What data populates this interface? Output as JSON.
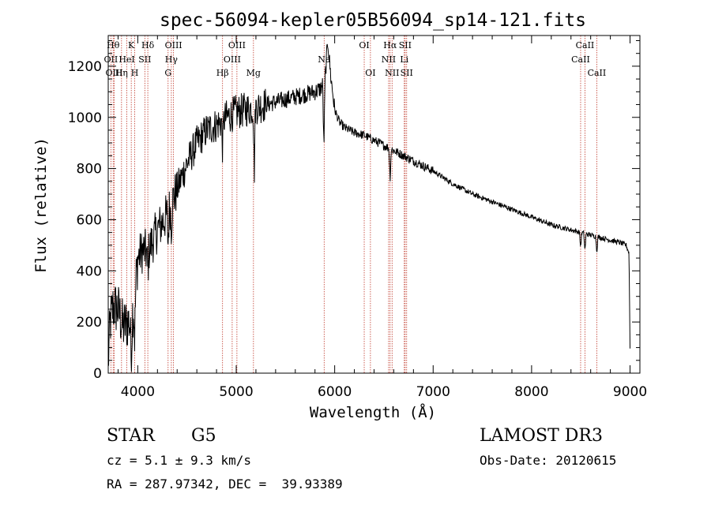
{
  "chart_data": {
    "type": "line",
    "title": "spec-56094-kepler05B56094_sp14-121.fits",
    "xlabel": "Wavelength (Å)",
    "ylabel": "Flux (relative)",
    "xlim": [
      3700,
      9100
    ],
    "ylim": [
      0,
      1320
    ],
    "xticks": [
      4000,
      5000,
      6000,
      7000,
      8000,
      9000
    ],
    "xtick_labels": [
      "4000",
      "5000",
      "6000",
      "7000",
      "8000",
      "9000"
    ],
    "yticks": [
      0,
      200,
      400,
      600,
      800,
      1000,
      1200
    ],
    "ytick_labels": [
      "0",
      "200",
      "400",
      "600",
      "800",
      "1000",
      "1200"
    ],
    "grid": false,
    "series": [
      {
        "name": "flux",
        "color": "#000000",
        "anchors_x": [
          3700,
          3720,
          3750,
          3800,
          3850,
          3900,
          3935,
          3970,
          4000,
          4050,
          4100,
          4200,
          4300,
          4400,
          4500,
          4600,
          4700,
          4800,
          4900,
          5000,
          5100,
          5200,
          5300,
          5400,
          5500,
          5600,
          5700,
          5800,
          5850,
          5900,
          5930,
          5960,
          6000,
          6050,
          6100,
          6200,
          6300,
          6400,
          6500,
          6600,
          6700,
          6800,
          7000,
          7200,
          7400,
          7600,
          7800,
          8000,
          8200,
          8400,
          8500,
          8600,
          8700,
          8800,
          8900,
          8960,
          8990,
          9000
        ],
        "anchors_y": [
          40,
          200,
          260,
          250,
          180,
          200,
          200,
          300,
          450,
          480,
          470,
          560,
          620,
          720,
          820,
          900,
          950,
          970,
          1000,
          1020,
          1030,
          1040,
          1050,
          1060,
          1070,
          1080,
          1090,
          1100,
          1110,
          1140,
          1300,
          1160,
          1030,
          980,
          960,
          940,
          930,
          910,
          890,
          870,
          850,
          830,
          790,
          740,
          700,
          670,
          640,
          610,
          580,
          560,
          550,
          540,
          530,
          520,
          510,
          500,
          470,
          100
        ]
      }
    ],
    "absorption_dips": [
      {
        "x": 3934,
        "depth": 160
      },
      {
        "x": 3969,
        "depth": 160
      },
      {
        "x": 4102,
        "depth": 80
      },
      {
        "x": 4308,
        "depth": 120
      },
      {
        "x": 4341,
        "depth": 90
      },
      {
        "x": 4861,
        "depth": 110
      },
      {
        "x": 5183,
        "depth": 260
      },
      {
        "x": 5890,
        "depth": 260
      },
      {
        "x": 6563,
        "depth": 120
      },
      {
        "x": 8498,
        "depth": 60
      },
      {
        "x": 8542,
        "depth": 70
      },
      {
        "x": 8662,
        "depth": 60
      }
    ],
    "line_markers": [
      {
        "x": 3750,
        "label": "Hθ",
        "row": 0
      },
      {
        "x": 3727,
        "label": "OII",
        "row": 1
      },
      {
        "x": 3760,
        "label": "OIII",
        "row": 2
      },
      {
        "x": 3835,
        "label": "Hη",
        "row": 2
      },
      {
        "x": 3889,
        "label": "HeI",
        "row": 1
      },
      {
        "x": 3934,
        "label": "K",
        "row": 0
      },
      {
        "x": 3969,
        "label": "H",
        "row": 2
      },
      {
        "x": 4072,
        "label": "SII",
        "row": 1
      },
      {
        "x": 4102,
        "label": "Hδ",
        "row": 0
      },
      {
        "x": 4308,
        "label": "G",
        "row": 2
      },
      {
        "x": 4341,
        "label": "Hγ",
        "row": 1
      },
      {
        "x": 4363,
        "label": "OIII",
        "row": 0
      },
      {
        "x": 4861,
        "label": "Hβ",
        "row": 2
      },
      {
        "x": 4959,
        "label": "OIII",
        "row": 1
      },
      {
        "x": 5007,
        "label": "OIII",
        "row": 0
      },
      {
        "x": 5175,
        "label": "Mg",
        "row": 2
      },
      {
        "x": 5893,
        "label": "Na",
        "row": 1
      },
      {
        "x": 6300,
        "label": "OI",
        "row": 0
      },
      {
        "x": 6363,
        "label": "OI",
        "row": 2
      },
      {
        "x": 6548,
        "label": "NII",
        "row": 1
      },
      {
        "x": 6563,
        "label": "Hα",
        "row": 0
      },
      {
        "x": 6583,
        "label": "NII",
        "row": 2
      },
      {
        "x": 6707,
        "label": "Li",
        "row": 1
      },
      {
        "x": 6716,
        "label": "SII",
        "row": 0
      },
      {
        "x": 6731,
        "label": "SII",
        "row": 2
      },
      {
        "x": 8498,
        "label": "CaII",
        "row": 1
      },
      {
        "x": 8542,
        "label": "CaII",
        "row": 0
      },
      {
        "x": 8662,
        "label": "CaII",
        "row": 2
      }
    ]
  },
  "info": {
    "object_class": "STAR",
    "subclass": "G5",
    "survey": "LAMOST DR3",
    "cz": "cz = 5.1 ± 9.3 km/s",
    "obs_date": "Obs-Date: 20120615",
    "coords": "RA = 287.97342, DEC =  39.93389"
  }
}
